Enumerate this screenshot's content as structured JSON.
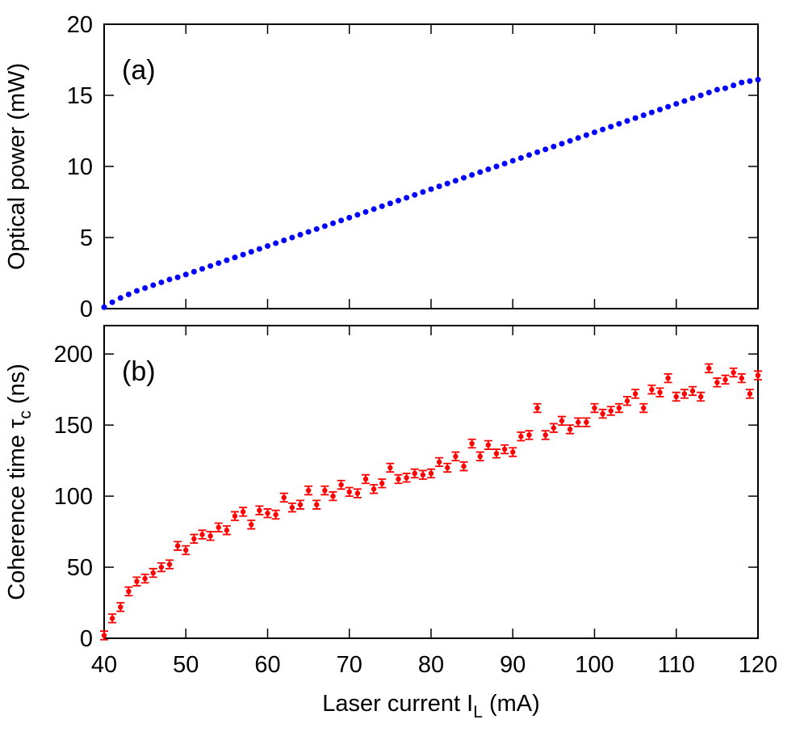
{
  "chart_data": [
    {
      "type": "scatter",
      "annotation": "(a)",
      "ylabel": "Optical power (mW)",
      "color": "#0000ff",
      "x": [
        40,
        41,
        42,
        43,
        44,
        45,
        46,
        47,
        48,
        49,
        50,
        51,
        52,
        53,
        54,
        55,
        56,
        57,
        58,
        59,
        60,
        61,
        62,
        63,
        64,
        65,
        66,
        67,
        68,
        69,
        70,
        71,
        72,
        73,
        74,
        75,
        76,
        77,
        78,
        79,
        80,
        81,
        82,
        83,
        84,
        85,
        86,
        87,
        88,
        89,
        90,
        91,
        92,
        93,
        94,
        95,
        96,
        97,
        98,
        99,
        100,
        101,
        102,
        103,
        104,
        105,
        106,
        107,
        108,
        109,
        110,
        111,
        112,
        113,
        114,
        115,
        116,
        117,
        118,
        119,
        120
      ],
      "values": [
        0.1,
        0.45,
        0.75,
        1.0,
        1.25,
        1.45,
        1.65,
        1.85,
        2.05,
        2.2,
        2.4,
        2.6,
        2.8,
        3.0,
        3.2,
        3.4,
        3.6,
        3.8,
        4.0,
        4.2,
        4.4,
        4.6,
        4.8,
        5.0,
        5.2,
        5.4,
        5.6,
        5.8,
        6.0,
        6.2,
        6.4,
        6.6,
        6.8,
        7.0,
        7.2,
        7.4,
        7.6,
        7.8,
        8.0,
        8.2,
        8.4,
        8.6,
        8.8,
        9.0,
        9.2,
        9.4,
        9.6,
        9.8,
        10.0,
        10.2,
        10.4,
        10.6,
        10.8,
        11.0,
        11.2,
        11.4,
        11.6,
        11.8,
        12.0,
        12.2,
        12.4,
        12.6,
        12.8,
        13.0,
        13.2,
        13.4,
        13.6,
        13.8,
        14.0,
        14.2,
        14.4,
        14.6,
        14.8,
        15.0,
        15.2,
        15.4,
        15.5,
        15.7,
        15.9,
        16.0,
        16.1
      ],
      "xlim": [
        40,
        120
      ],
      "xticks": [
        40,
        50,
        60,
        70,
        80,
        90,
        100,
        110,
        120
      ],
      "ylim": [
        0,
        20
      ],
      "yticks": [
        0,
        5,
        10,
        15,
        20
      ]
    },
    {
      "type": "errorbar",
      "annotation": "(b)",
      "ylabel": [
        "Coherence time τ",
        "c",
        " (ns)"
      ],
      "xlabel": [
        "Laser current I",
        "L",
        " (mA)"
      ],
      "color": "#ff0000",
      "x": [
        40,
        41,
        42,
        43,
        44,
        45,
        46,
        47,
        48,
        49,
        50,
        51,
        52,
        53,
        54,
        55,
        56,
        57,
        58,
        59,
        60,
        61,
        62,
        63,
        64,
        65,
        66,
        67,
        68,
        69,
        70,
        71,
        72,
        73,
        74,
        75,
        76,
        77,
        78,
        79,
        80,
        81,
        82,
        83,
        84,
        85,
        86,
        87,
        88,
        89,
        90,
        91,
        92,
        93,
        94,
        95,
        96,
        97,
        98,
        99,
        100,
        101,
        102,
        103,
        104,
        105,
        106,
        107,
        108,
        109,
        110,
        111,
        112,
        113,
        114,
        115,
        116,
        117,
        118,
        119,
        120
      ],
      "values": [
        2,
        14,
        22,
        33,
        40,
        42,
        46,
        50,
        52,
        65,
        62,
        70,
        73,
        72,
        78,
        76,
        86,
        89,
        80,
        90,
        88,
        87,
        99,
        92,
        94,
        104,
        94,
        104,
        100,
        108,
        103,
        102,
        112,
        105,
        109,
        120,
        112,
        113,
        116,
        115,
        116,
        124,
        120,
        128,
        121,
        137,
        128,
        136,
        130,
        133,
        131,
        142,
        143,
        162,
        143,
        148,
        153,
        147,
        152,
        152,
        162,
        158,
        160,
        162,
        167,
        172,
        162,
        175,
        173,
        183,
        170,
        172,
        174,
        170,
        190,
        180,
        182,
        187,
        183,
        172,
        185
      ],
      "errors": [
        3,
        3,
        3,
        3,
        3,
        3,
        3,
        3,
        3,
        3,
        3,
        3,
        3,
        3,
        3,
        3,
        3,
        3,
        3,
        3,
        3,
        3,
        3,
        3,
        3,
        3,
        3,
        3,
        3,
        3,
        3,
        3,
        3,
        3,
        3,
        3,
        3,
        3,
        3,
        3,
        3,
        3,
        3,
        3,
        3,
        3,
        3,
        3,
        3,
        3,
        3,
        3,
        3,
        3,
        3,
        3,
        3,
        3,
        3,
        3,
        3,
        3,
        3,
        3,
        3,
        3,
        3,
        3,
        3,
        3,
        3,
        3,
        3,
        3,
        3,
        3,
        3,
        3,
        3,
        3,
        3
      ],
      "xlim": [
        40,
        120
      ],
      "xticks": [
        40,
        50,
        60,
        70,
        80,
        90,
        100,
        110,
        120
      ],
      "ylim": [
        0,
        220
      ],
      "yticks": [
        0,
        50,
        100,
        150,
        200
      ]
    }
  ]
}
